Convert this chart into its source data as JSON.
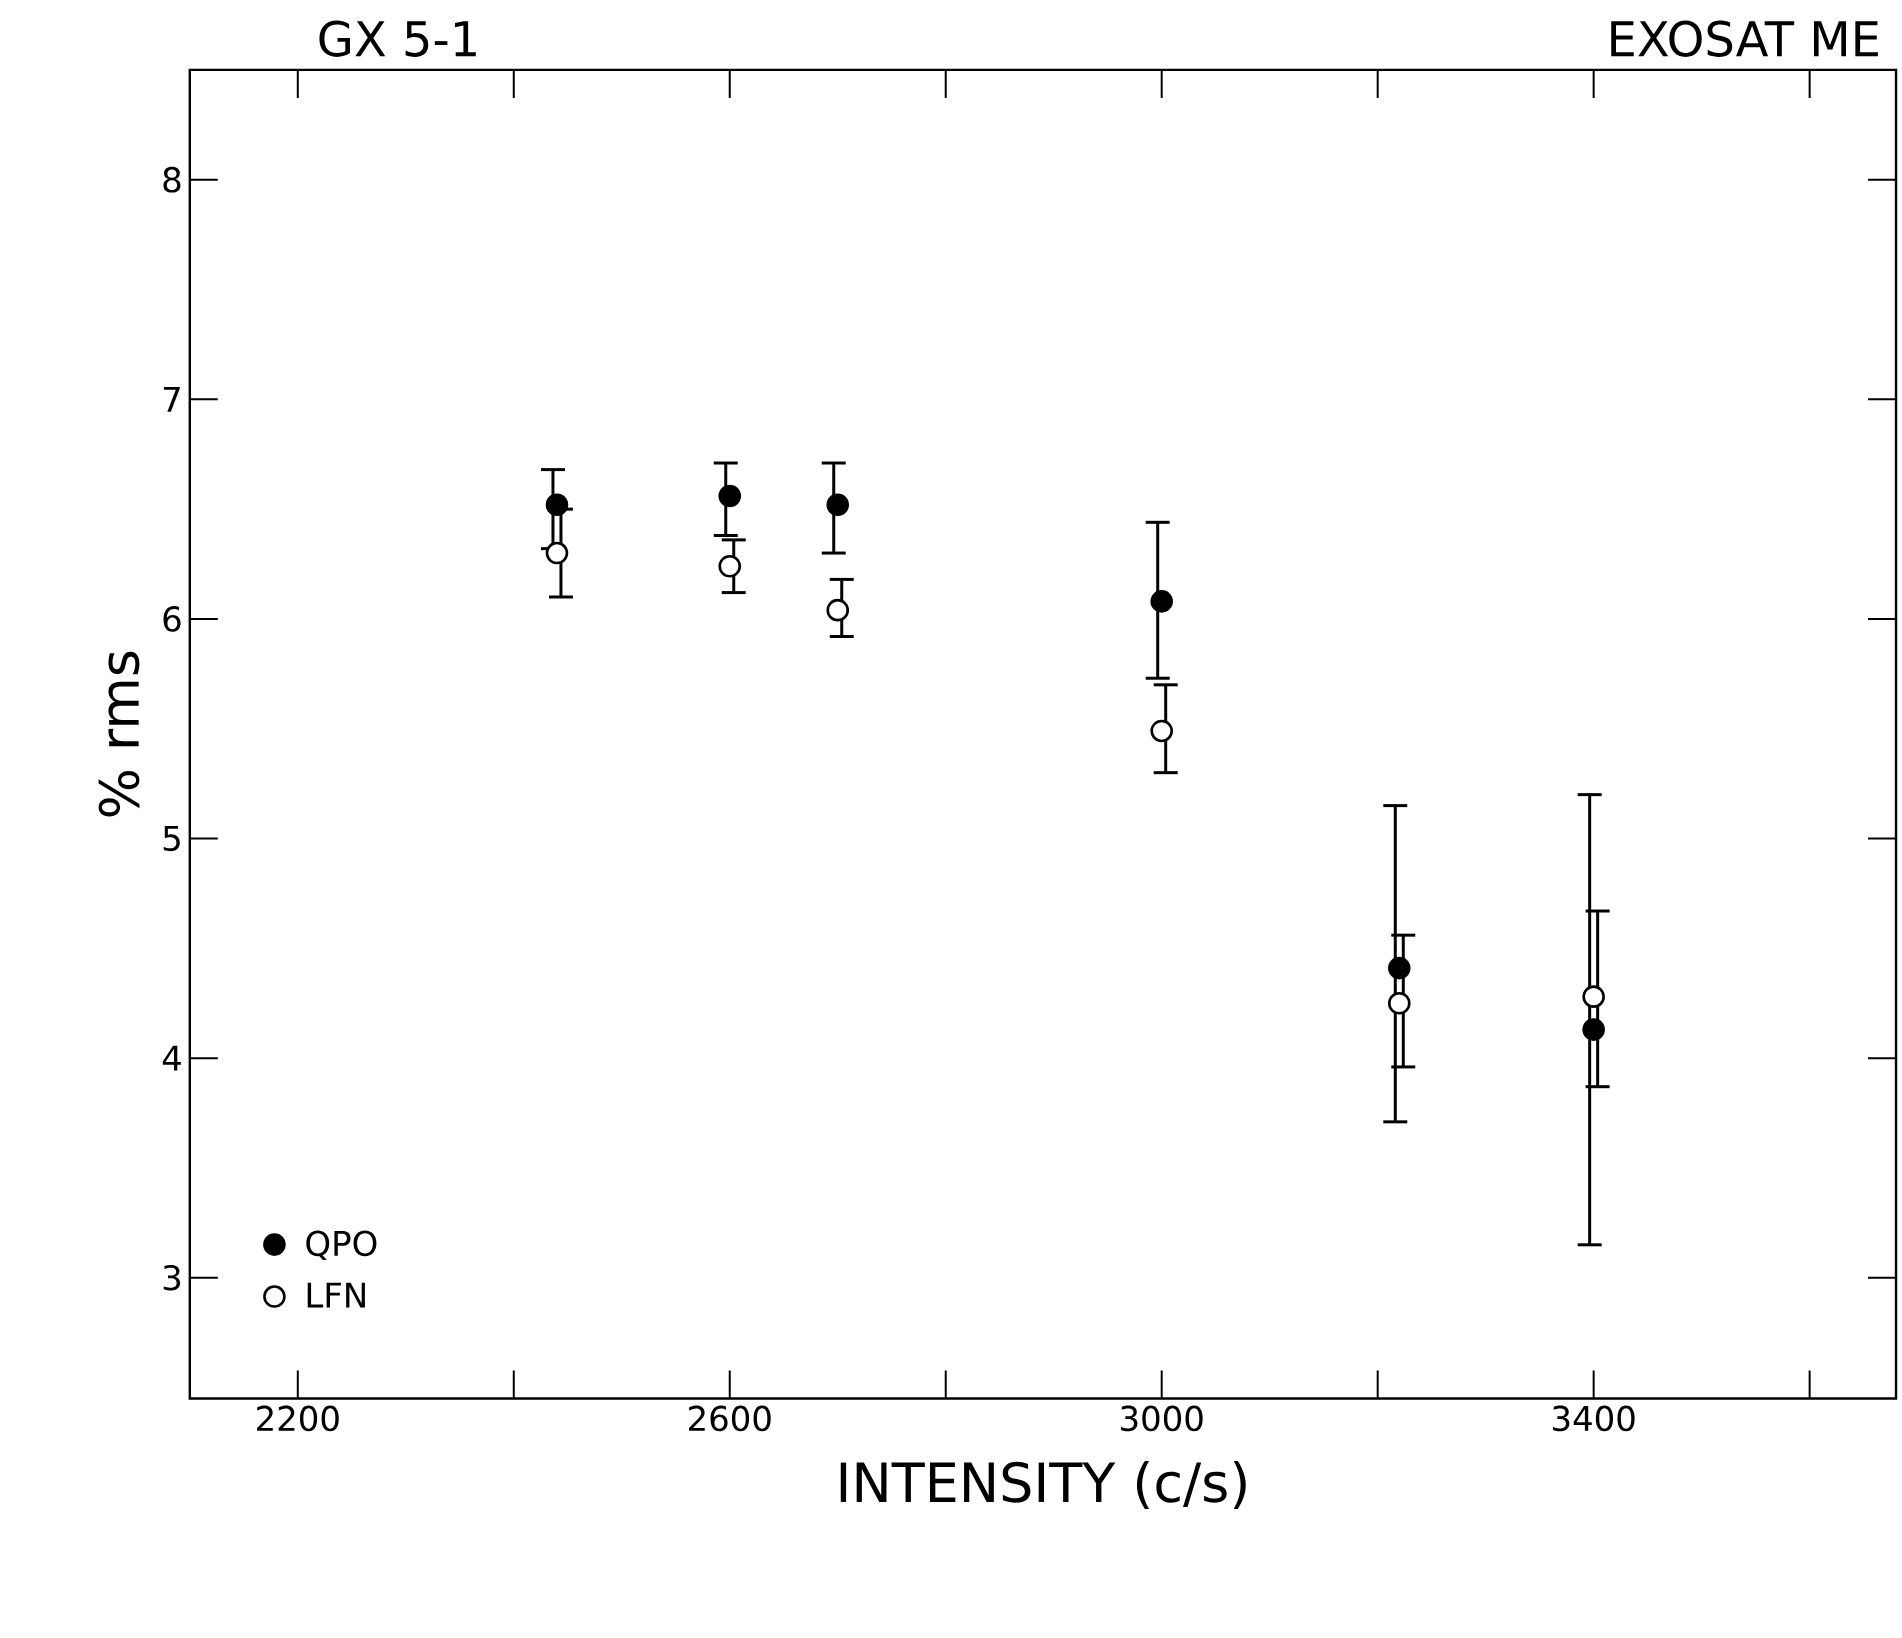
{
  "chart_data": {
    "type": "scatter",
    "title": "GX 5-1",
    "annotations": [
      "EXOSAT ME"
    ],
    "xlabel": "INTENSITY  (c/s)",
    "ylabel": "% rms",
    "xlim": [
      2100,
      3680
    ],
    "xticks": [
      2200,
      {
        "value": 2400,
        "label": null
      },
      2600,
      {
        "value": 2800,
        "label": null
      },
      3000,
      {
        "value": 3200,
        "label": null
      },
      3400,
      {
        "value": 3600,
        "label": null
      }
    ],
    "ylim": [
      2.45,
      8.5
    ],
    "yticks": [
      3,
      4,
      5,
      6,
      7,
      8
    ],
    "marker": "circle",
    "legend": "bottom left",
    "grid": false,
    "series": [
      {
        "name": "QPO",
        "color": "#000000",
        "x": [
          2440,
          2600,
          2700,
          3000,
          3220,
          3400
        ],
        "values": [
          6.52,
          6.56,
          6.52,
          6.08,
          4.41,
          4.13
        ],
        "errors": [
          [
            6.32,
            6.68
          ],
          [
            6.38,
            6.71
          ],
          [
            6.3,
            6.71
          ],
          [
            5.73,
            6.44
          ],
          [
            3.71,
            5.15
          ],
          [
            3.15,
            5.2
          ]
        ]
      },
      {
        "name": "LFN",
        "color": "#ffffff",
        "x": [
          2440,
          2600,
          2700,
          3000,
          3220,
          3400
        ],
        "values": [
          6.3,
          6.24,
          6.04,
          5.49,
          4.25,
          4.28
        ],
        "errors": [
          [
            6.1,
            6.5
          ],
          [
            6.12,
            6.36
          ],
          [
            5.92,
            6.18
          ],
          [
            5.3,
            5.7
          ],
          [
            3.96,
            4.56
          ],
          [
            3.87,
            4.67
          ]
        ]
      }
    ]
  }
}
